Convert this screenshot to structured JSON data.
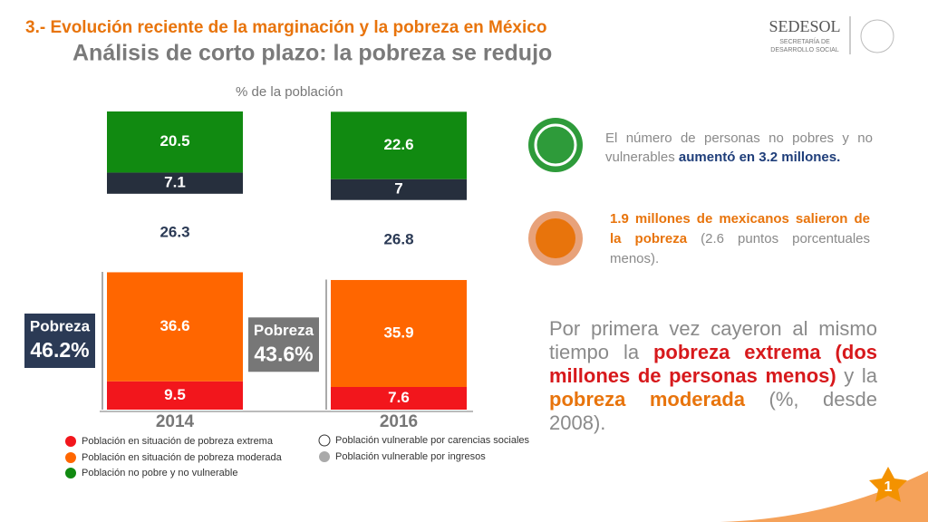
{
  "header": {
    "section": "3.- Evolución reciente de la marginación y la pobreza en México",
    "title": "Análisis de corto plazo: la pobreza se redujo",
    "logo": {
      "name": "SEDESOL",
      "line1": "SECRETARÍA DE",
      "line2": "DESARROLLO SOCIAL"
    }
  },
  "chart_data": {
    "type": "stacked_bar",
    "subtitle": "% de la población",
    "categories": [
      "2014",
      "2016"
    ],
    "series": [
      {
        "name": "Población en situación de pobreza extrema",
        "color": "#f2161c",
        "label_color": "#ffffff",
        "values": [
          9.5,
          7.6
        ]
      },
      {
        "name": "Población en situación de pobreza moderada",
        "color": "#ff6600",
        "label_color": "#ffffff",
        "values": [
          36.6,
          35.9
        ]
      },
      {
        "name": "Población vulnerable por carencias sociales",
        "color": "#ffffff",
        "label_color": "#2b3a55",
        "values": [
          26.3,
          26.8
        ]
      },
      {
        "name": "Población vulnerable por ingresos",
        "color": "#262f3d",
        "label_color": "#ffffff",
        "values": [
          7.1,
          7.0
        ]
      },
      {
        "name": "Población no pobre y no vulnerable",
        "color": "#118a11",
        "label_color": "#ffffff",
        "values": [
          20.5,
          22.6
        ]
      }
    ],
    "poverty_totals": [
      {
        "label": "Pobreza",
        "value": 46.2,
        "value_label": "46.2%"
      },
      {
        "label": "Pobreza",
        "value": 43.6,
        "value_label": "43.6%"
      }
    ]
  },
  "notes": [
    [
      {
        "text": "El número de personas no pobres y no vulnerables ",
        "style": "normal"
      },
      {
        "text": "aumentó en 3.2 millones.",
        "style": "emph-blue"
      }
    ],
    [
      {
        "text": "1.9 millones de mexicanos salieron de la pobreza",
        "style": "emph-orange"
      },
      {
        "text": " (2.6 puntos porcentuales menos).",
        "style": "normal"
      }
    ]
  ],
  "conclusion": [
    {
      "text": "Por primera vez cayeron al mismo tiempo la ",
      "style": "normal"
    },
    {
      "text": "pobreza extrema (dos millones de personas menos)",
      "style": "emph-red"
    },
    {
      "text": " y la ",
      "style": "normal"
    },
    {
      "text": "pobreza moderada",
      "style": "emph-orange"
    },
    {
      "text": " (%, desde 2008).",
      "style": "normal"
    }
  ],
  "page_number": "1"
}
